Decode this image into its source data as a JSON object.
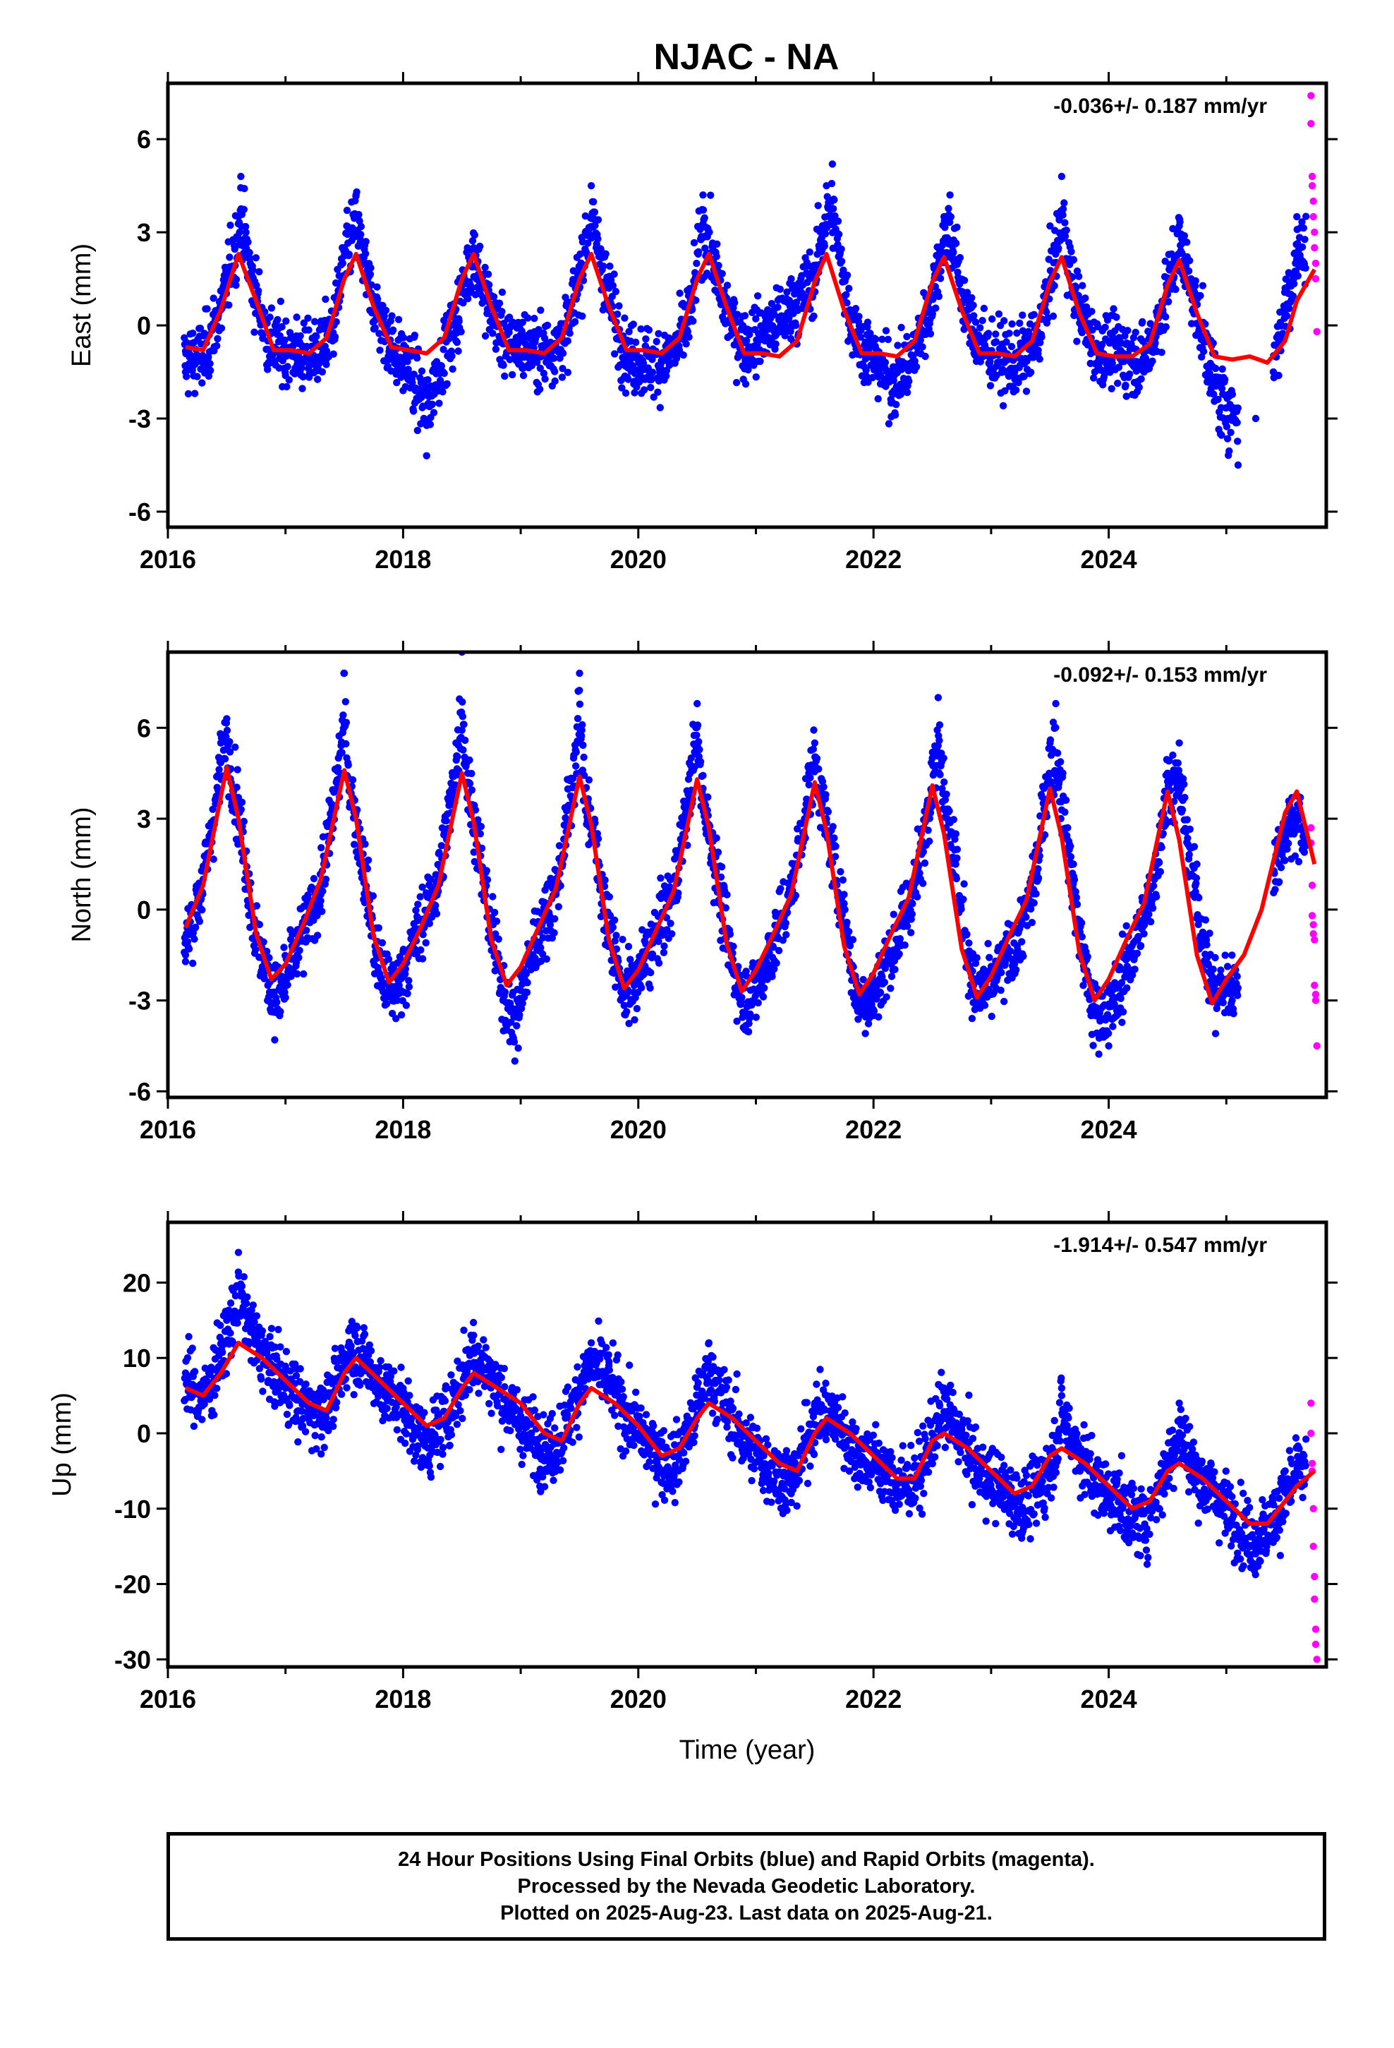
{
  "title": "NJAC - NA",
  "footer": {
    "line1": "24 Hour Positions Using Final Orbits (blue) and Rapid Orbits (magenta).",
    "line2": "Processed by the Nevada Geodetic Laboratory.",
    "line3": "Plotted on 2025-Aug-23. Last data on 2025-Aug-21."
  },
  "colors": {
    "final": "#0000ff",
    "rapid": "#ff00ff",
    "model": "#ff0000",
    "frame": "#000000"
  },
  "chart_data": [
    {
      "type": "scatter",
      "ylabel": "East (mm)",
      "xlabel": "",
      "rate_label": "-0.036+/- 0.187 mm/yr",
      "xlim": [
        2016.0,
        2025.85
      ],
      "ylim": [
        -6.5,
        7.8
      ],
      "xticks": [
        "2016",
        "2018",
        "2020",
        "2022",
        "2024"
      ],
      "xtick_values": [
        2016,
        2018,
        2020,
        2022,
        2024
      ],
      "yticks": [
        "-6",
        "-3",
        "0",
        "3",
        "6"
      ],
      "ytick_values": [
        -6,
        -3,
        0,
        3,
        6
      ],
      "grid": false,
      "series": [
        {
          "role": "final",
          "x": [
            2016.15,
            2016.3,
            2016.45,
            2016.6,
            2016.62,
            2016.7,
            2016.85,
            2017.0,
            2017.2,
            2017.4,
            2017.5,
            2017.6,
            2017.7,
            2017.85,
            2018.0,
            2018.1,
            2018.2,
            2018.3,
            2018.45,
            2018.6,
            2018.7,
            2018.85,
            2019.0,
            2019.2,
            2019.4,
            2019.55,
            2019.6,
            2019.75,
            2019.9,
            2020.1,
            2020.3,
            2020.45,
            2020.55,
            2020.6,
            2020.7,
            2020.9,
            2021.1,
            2021.3,
            2021.5,
            2021.6,
            2021.65,
            2021.8,
            2022.0,
            2022.15,
            2022.3,
            2022.5,
            2022.6,
            2022.65,
            2022.8,
            2023.0,
            2023.2,
            2023.4,
            2023.55,
            2023.6,
            2023.7,
            2023.9,
            2024.1,
            2024.3,
            2024.5,
            2024.6,
            2024.7,
            2024.85,
            2024.95,
            2025.1,
            2025.25,
            2025.4,
            2025.5,
            2025.6
          ],
          "y": [
            -1.5,
            -1.2,
            0.5,
            3.5,
            4.8,
            2.0,
            -0.5,
            -0.8,
            -1.2,
            -0.5,
            2.5,
            4.2,
            1.5,
            -0.2,
            -1.5,
            -2.5,
            -4.2,
            -2.0,
            -0.5,
            2.5,
            0.8,
            -0.5,
            -0.5,
            -0.8,
            -0.5,
            3.0,
            4.5,
            1.2,
            -1.2,
            -1.5,
            -1.2,
            0.2,
            4.2,
            3.0,
            0.8,
            -0.5,
            0.5,
            1.5,
            1.8,
            4.5,
            5.2,
            0.5,
            -1.2,
            -2.5,
            -1.8,
            0.5,
            3.5,
            4.2,
            0.5,
            -1.0,
            -1.5,
            -0.8,
            2.5,
            4.8,
            1.2,
            -0.8,
            -0.8,
            -1.5,
            1.0,
            3.2,
            1.5,
            -1.5,
            -3.5,
            -4.5,
            -3.0,
            -1.5,
            1.2,
            3.5
          ]
        },
        {
          "role": "rapid",
          "x": [
            2025.72,
            2025.72,
            2025.73,
            2025.73,
            2025.74,
            2025.74,
            2025.75,
            2025.75,
            2025.76,
            2025.76,
            2025.77
          ],
          "y": [
            7.4,
            6.5,
            4.8,
            4.5,
            4.0,
            3.5,
            3.0,
            2.5,
            2.0,
            1.5,
            -0.2
          ]
        },
        {
          "role": "model",
          "x": [
            2016.15,
            2016.3,
            2016.45,
            2016.6,
            2016.75,
            2016.9,
            2017.05,
            2017.2,
            2017.35,
            2017.5,
            2017.6,
            2017.75,
            2017.9,
            2018.05,
            2018.2,
            2018.35,
            2018.5,
            2018.6,
            2018.75,
            2018.9,
            2019.05,
            2019.2,
            2019.35,
            2019.5,
            2019.6,
            2019.75,
            2019.9,
            2020.05,
            2020.2,
            2020.35,
            2020.5,
            2020.6,
            2020.75,
            2020.9,
            2021.05,
            2021.2,
            2021.35,
            2021.5,
            2021.6,
            2021.75,
            2021.9,
            2022.05,
            2022.2,
            2022.35,
            2022.5,
            2022.6,
            2022.75,
            2022.9,
            2023.05,
            2023.2,
            2023.35,
            2023.5,
            2023.6,
            2023.75,
            2023.9,
            2024.05,
            2024.2,
            2024.35,
            2024.5,
            2024.6,
            2024.75,
            2024.9,
            2025.05,
            2025.2,
            2025.35,
            2025.5,
            2025.6,
            2025.75
          ],
          "y": [
            -0.7,
            -0.8,
            0.5,
            2.3,
            0.8,
            -0.8,
            -0.8,
            -0.9,
            -0.4,
            1.5,
            2.3,
            0.6,
            -0.7,
            -0.8,
            -0.9,
            -0.4,
            1.5,
            2.3,
            0.6,
            -0.8,
            -0.8,
            -0.9,
            -0.4,
            1.5,
            2.3,
            0.6,
            -0.8,
            -0.8,
            -0.9,
            -0.4,
            1.5,
            2.3,
            0.6,
            -0.9,
            -0.9,
            -1.0,
            -0.5,
            1.4,
            2.3,
            0.5,
            -0.9,
            -0.9,
            -1.0,
            -0.5,
            1.4,
            2.2,
            0.5,
            -0.9,
            -0.9,
            -1.0,
            -0.5,
            1.4,
            2.2,
            0.4,
            -0.9,
            -1.0,
            -1.0,
            -0.6,
            1.3,
            2.1,
            0.4,
            -1.0,
            -1.1,
            -1.0,
            -1.2,
            -0.5,
            0.8,
            1.8
          ]
        }
      ]
    },
    {
      "type": "scatter",
      "ylabel": "North (mm)",
      "xlabel": "",
      "rate_label": "-0.092+/- 0.153 mm/yr",
      "xlim": [
        2016.0,
        2025.85
      ],
      "ylim": [
        -6.2,
        8.5
      ],
      "xticks": [
        "2016",
        "2018",
        "2020",
        "2022",
        "2024"
      ],
      "xtick_values": [
        2016,
        2018,
        2020,
        2022,
        2024
      ],
      "yticks": [
        "-6",
        "-3",
        "0",
        "3",
        "6"
      ],
      "ytick_values": [
        -6,
        -3,
        0,
        3,
        6
      ],
      "grid": false,
      "series": [
        {
          "role": "final",
          "x": [
            2016.15,
            2016.3,
            2016.45,
            2016.5,
            2016.6,
            2016.75,
            2016.85,
            2016.95,
            2017.1,
            2017.3,
            2017.45,
            2017.5,
            2017.55,
            2017.7,
            2017.8,
            2017.95,
            2018.1,
            2018.3,
            2018.45,
            2018.5,
            2018.55,
            2018.7,
            2018.85,
            2018.95,
            2019.1,
            2019.3,
            2019.45,
            2019.5,
            2019.55,
            2019.7,
            2019.85,
            2019.95,
            2020.1,
            2020.3,
            2020.45,
            2020.5,
            2020.55,
            2020.7,
            2020.85,
            2020.95,
            2021.1,
            2021.3,
            2021.45,
            2021.5,
            2021.6,
            2021.75,
            2021.85,
            2022.0,
            2022.2,
            2022.4,
            2022.5,
            2022.55,
            2022.7,
            2022.85,
            2023.0,
            2023.2,
            2023.4,
            2023.45,
            2023.55,
            2023.7,
            2023.85,
            2024.0,
            2024.2,
            2024.4,
            2024.5,
            2024.6,
            2024.75,
            2024.9,
            2025.05,
            2025.45,
            2025.55,
            2025.65
          ],
          "y": [
            -1.5,
            1.0,
            5.5,
            6.3,
            3.5,
            -1.0,
            -2.5,
            -3.5,
            -1.5,
            0.5,
            5.0,
            7.8,
            4.0,
            0.5,
            -2.5,
            -3.0,
            -1.0,
            1.0,
            5.5,
            8.5,
            4.5,
            0.8,
            -3.0,
            -5.0,
            -1.5,
            0.5,
            5.0,
            7.8,
            4.0,
            0.8,
            -2.5,
            -3.0,
            -1.5,
            0.5,
            5.0,
            6.8,
            4.0,
            0.5,
            -2.8,
            -3.5,
            -2.0,
            0.5,
            4.5,
            5.5,
            3.0,
            0.5,
            -3.0,
            -3.5,
            -1.5,
            1.0,
            5.0,
            7.0,
            2.5,
            -2.5,
            -2.8,
            -2.0,
            1.0,
            4.0,
            6.8,
            1.5,
            -3.5,
            -4.5,
            -2.0,
            0.5,
            4.5,
            5.5,
            1.5,
            -2.5,
            -3.0,
            1.5,
            2.5,
            2.0
          ]
        },
        {
          "role": "rapid",
          "x": [
            2025.72,
            2025.72,
            2025.73,
            2025.73,
            2025.74,
            2025.74,
            2025.75,
            2025.75,
            2025.76,
            2025.76,
            2025.77
          ],
          "y": [
            2.7,
            2.2,
            0.8,
            -0.2,
            -0.5,
            -0.8,
            -1.0,
            -2.5,
            -2.8,
            -3.0,
            -4.5
          ]
        },
        {
          "role": "model",
          "x": [
            2016.15,
            2016.3,
            2016.5,
            2016.6,
            2016.75,
            2016.88,
            2017.0,
            2017.15,
            2017.3,
            2017.5,
            2017.6,
            2017.75,
            2017.88,
            2018.0,
            2018.15,
            2018.3,
            2018.5,
            2018.6,
            2018.75,
            2018.88,
            2019.0,
            2019.15,
            2019.3,
            2019.5,
            2019.6,
            2019.75,
            2019.88,
            2020.0,
            2020.15,
            2020.3,
            2020.5,
            2020.6,
            2020.75,
            2020.88,
            2021.0,
            2021.15,
            2021.3,
            2021.5,
            2021.6,
            2021.75,
            2021.88,
            2022.0,
            2022.15,
            2022.3,
            2022.5,
            2022.6,
            2022.75,
            2022.88,
            2023.0,
            2023.15,
            2023.3,
            2023.5,
            2023.6,
            2023.75,
            2023.88,
            2024.0,
            2024.15,
            2024.3,
            2024.5,
            2024.6,
            2024.75,
            2024.88,
            2025.0,
            2025.15,
            2025.3,
            2025.5,
            2025.6,
            2025.75
          ],
          "y": [
            -0.6,
            0.8,
            4.7,
            3.0,
            -0.8,
            -2.3,
            -1.8,
            -0.5,
            1.0,
            4.6,
            3.0,
            -0.9,
            -2.4,
            -1.8,
            -0.6,
            0.8,
            4.5,
            2.9,
            -1.0,
            -2.5,
            -1.9,
            -0.6,
            0.7,
            4.4,
            2.8,
            -1.0,
            -2.6,
            -2.0,
            -0.7,
            0.6,
            4.3,
            2.7,
            -1.1,
            -2.7,
            -2.0,
            -0.8,
            0.5,
            4.2,
            2.6,
            -1.2,
            -2.8,
            -2.1,
            -0.8,
            0.4,
            4.1,
            2.5,
            -1.3,
            -2.9,
            -2.2,
            -0.9,
            0.3,
            4.0,
            2.4,
            -1.4,
            -3.0,
            -2.3,
            -1.0,
            0.2,
            3.9,
            2.3,
            -1.5,
            -3.1,
            -2.3,
            -1.5,
            0.0,
            3.2,
            3.9,
            1.5
          ]
        }
      ]
    },
    {
      "type": "scatter",
      "ylabel": "Up (mm)",
      "xlabel": "Time (year)",
      "rate_label": "-1.914+/- 0.547 mm/yr",
      "xlim": [
        2016.0,
        2025.85
      ],
      "ylim": [
        -31,
        28
      ],
      "xticks": [
        "2016",
        "2018",
        "2020",
        "2022",
        "2024"
      ],
      "xtick_values": [
        2016,
        2018,
        2020,
        2022,
        2024
      ],
      "yticks": [
        "-30",
        "-20",
        "-10",
        "0",
        "10",
        "20"
      ],
      "ytick_values": [
        -30,
        -20,
        -10,
        0,
        10,
        20
      ],
      "grid": false,
      "series": [
        {
          "role": "final",
          "x": [
            2016.15,
            2016.3,
            2016.5,
            2016.6,
            2016.7,
            2016.85,
            2017.0,
            2017.2,
            2017.4,
            2017.55,
            2017.7,
            2017.85,
            2018.0,
            2018.2,
            2018.4,
            2018.6,
            2018.75,
            2018.9,
            2019.05,
            2019.25,
            2019.45,
            2019.6,
            2019.75,
            2019.9,
            2020.1,
            2020.3,
            2020.5,
            2020.6,
            2020.75,
            2020.9,
            2021.1,
            2021.3,
            2021.5,
            2021.7,
            2021.85,
            2022.0,
            2022.2,
            2022.4,
            2022.6,
            2022.75,
            2022.9,
            2023.1,
            2023.3,
            2023.5,
            2023.6,
            2023.75,
            2023.9,
            2024.1,
            2024.3,
            2024.5,
            2024.6,
            2024.75,
            2024.9,
            2025.05,
            2025.25,
            2025.45,
            2025.6
          ],
          "y": [
            8,
            4,
            15,
            24,
            16,
            9,
            6,
            2,
            4,
            14,
            9,
            5,
            3,
            -4,
            3,
            13,
            8,
            2,
            -2,
            -4,
            5,
            12,
            9,
            2,
            -2,
            -6,
            4,
            12,
            4,
            -2,
            -6,
            -8,
            4,
            2,
            -4,
            -4,
            -8,
            -6,
            6,
            0,
            -6,
            -8,
            -12,
            -6,
            6,
            -2,
            -8,
            -10,
            -14,
            -4,
            4,
            -6,
            -8,
            -12,
            -16,
            -10,
            -4
          ]
        },
        {
          "role": "rapid",
          "x": [
            2025.72,
            2025.72,
            2025.73,
            2025.73,
            2025.74,
            2025.74,
            2025.75,
            2025.75,
            2025.76,
            2025.76,
            2025.77
          ],
          "y": [
            4,
            0,
            -4,
            -5,
            -10,
            -15,
            -19,
            -22,
            -26,
            -28,
            -30
          ]
        },
        {
          "role": "model",
          "x": [
            2016.15,
            2016.3,
            2016.45,
            2016.6,
            2016.8,
            2017.0,
            2017.2,
            2017.35,
            2017.5,
            2017.6,
            2017.8,
            2018.0,
            2018.2,
            2018.35,
            2018.5,
            2018.6,
            2018.8,
            2019.0,
            2019.2,
            2019.35,
            2019.5,
            2019.6,
            2019.8,
            2020.0,
            2020.2,
            2020.35,
            2020.5,
            2020.6,
            2020.8,
            2021.0,
            2021.2,
            2021.35,
            2021.5,
            2021.6,
            2021.8,
            2022.0,
            2022.2,
            2022.35,
            2022.5,
            2022.6,
            2022.8,
            2023.0,
            2023.2,
            2023.35,
            2023.5,
            2023.6,
            2023.8,
            2024.0,
            2024.2,
            2024.35,
            2024.5,
            2024.6,
            2024.8,
            2025.0,
            2025.2,
            2025.35,
            2025.5,
            2025.6,
            2025.75
          ],
          "y": [
            6,
            5,
            8,
            12,
            10,
            7,
            4,
            3,
            8,
            10,
            7,
            4,
            1,
            2,
            6,
            8,
            6,
            4,
            0,
            -1,
            4,
            6,
            4,
            1,
            -3,
            -2,
            2,
            4,
            2,
            -1,
            -4,
            -5,
            0,
            2,
            0,
            -3,
            -6,
            -6,
            -1,
            0,
            -2,
            -5,
            -8,
            -7,
            -3,
            -2,
            -4,
            -7,
            -10,
            -9,
            -5,
            -4,
            -6,
            -9,
            -12,
            -12,
            -9,
            -7,
            -5
          ]
        }
      ]
    }
  ]
}
